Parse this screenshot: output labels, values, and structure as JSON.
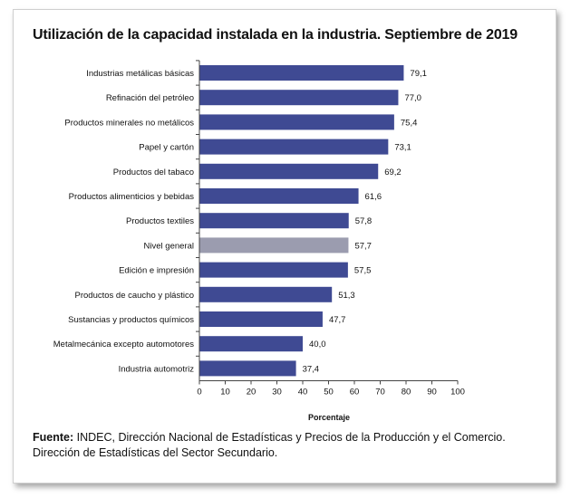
{
  "title": "Utilización de la capacidad instalada en la industria. Septiembre de 2019",
  "source_label": "Fuente:",
  "source_text": "INDEC, Dirección Nacional de Estadísticas y Precios de la Producción y el Comercio. Dirección de Estadísticas del Sector Secundario.",
  "colors": {
    "bar": "#3f4a93",
    "highlight": "#9b9caf"
  },
  "chart_data": {
    "type": "bar",
    "orientation": "horizontal",
    "title": "Utilización de la capacidad instalada en la industria. Septiembre de 2019",
    "xlabel": "Porcentaje",
    "ylabel": "",
    "xlim": [
      0,
      100
    ],
    "ticks": [
      0,
      10,
      20,
      30,
      40,
      50,
      60,
      70,
      80,
      90,
      100
    ],
    "categories": [
      "Industrias metálicas básicas",
      "Refinación del petróleo",
      "Productos minerales no metálicos",
      "Papel y cartón",
      "Productos del tabaco",
      "Productos alimenticios y bebidas",
      "Productos textiles",
      "Nivel general",
      "Edición e impresión",
      "Productos de caucho y plástico",
      "Sustancias y productos químicos",
      "Metalmecánica excepto automotores",
      "Industria automotriz"
    ],
    "values": [
      79.1,
      77.0,
      75.4,
      73.1,
      69.2,
      61.6,
      57.8,
      57.7,
      57.5,
      51.3,
      47.7,
      40.0,
      37.4
    ],
    "value_labels": [
      "79,1",
      "77,0",
      "75,4",
      "73,1",
      "69,2",
      "61,6",
      "57,8",
      "57,7",
      "57,5",
      "51,3",
      "47,7",
      "40,0",
      "37,4"
    ],
    "highlight": "Nivel general",
    "grid": false
  }
}
